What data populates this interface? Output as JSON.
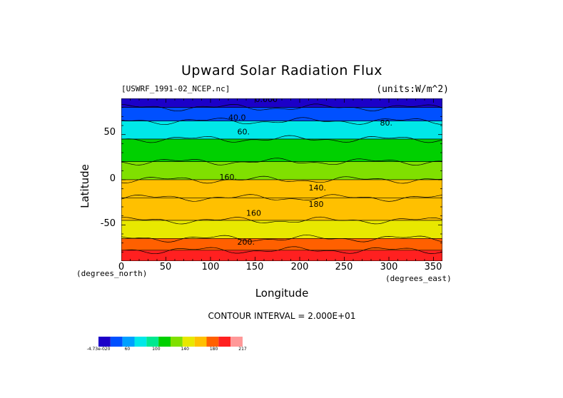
{
  "chart_data": {
    "type": "heatmap",
    "title": "Upward Solar Radiation Flux",
    "source_label": "[USWRF_1991-02_NCEP.nc]",
    "units_label": "(units:W/m^2)",
    "xlabel": "Longitude",
    "ylabel": "Latitude",
    "x_unit_label": "(degrees_east)",
    "y_unit_label": "(degrees_north)",
    "xlim": [
      0,
      360
    ],
    "ylim": [
      -90,
      90
    ],
    "x_ticks": [
      "0",
      "50",
      "100",
      "150",
      "200",
      "250",
      "300",
      "350"
    ],
    "y_ticks": [
      "50",
      "0",
      "-50"
    ],
    "contour_interval_text": "CONTOUR INTERVAL = 2.000E+01",
    "contour_labels": [
      "0.000",
      "40.0",
      "60.",
      "80.",
      "140.",
      "160.",
      "160",
      "180",
      "200."
    ],
    "colorbar": {
      "levels": [
        0,
        20,
        40,
        60,
        80,
        100,
        120,
        140,
        160,
        180,
        200,
        217
      ],
      "tick_labels": [
        "-4.73e-020",
        "60",
        "100",
        "140",
        "180",
        "217"
      ],
      "colors": [
        "#1c00c8",
        "#0050ff",
        "#00a0ff",
        "#00e8e8",
        "#00e890",
        "#00d000",
        "#80e000",
        "#e8e800",
        "#ffc000",
        "#ff6000",
        "#ff2020",
        "#ff9898"
      ]
    },
    "latitude_bands": [
      {
        "lat_range": [
          80,
          90
        ],
        "typical_value": 5
      },
      {
        "lat_range": [
          65,
          80
        ],
        "typical_value": 35
      },
      {
        "lat_range": [
          45,
          65
        ],
        "typical_value": 70
      },
      {
        "lat_range": [
          20,
          45
        ],
        "typical_value": 100
      },
      {
        "lat_range": [
          0,
          20
        ],
        "typical_value": 125
      },
      {
        "lat_range": [
          -20,
          0
        ],
        "typical_value": 160
      },
      {
        "lat_range": [
          -45,
          -20
        ],
        "typical_value": 165
      },
      {
        "lat_range": [
          -65,
          -45
        ],
        "typical_value": 150
      },
      {
        "lat_range": [
          -78,
          -65
        ],
        "typical_value": 180
      },
      {
        "lat_range": [
          -90,
          -78
        ],
        "typical_value": 210
      }
    ]
  }
}
